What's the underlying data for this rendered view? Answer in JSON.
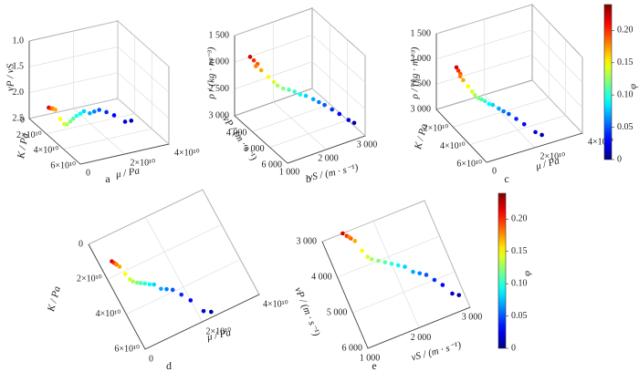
{
  "chart_data": [
    {
      "type": "scatter3d",
      "label": "a",
      "xlabel": "μ / Pa",
      "ylabel": "K / Pa",
      "zlabel": "vP / vS",
      "x": [
        3920000000.0,
        4310000000.0,
        4730000000.0,
        4710000000.0,
        5290000000.0,
        5760000000.0,
        6260000000.0,
        6790000000.0,
        7780000000.0,
        8740000000.0,
        9800000000.0,
        11000000000.0,
        12200000000.0,
        13500000000.0,
        15000000000.0,
        16600000000.0,
        18300000000.0,
        20000000000.0,
        22000000000.0,
        24000000000.0
      ],
      "y": [
        12800000000.0,
        14000000000.0,
        15200000000.0,
        15000000000.0,
        16900000000.0,
        21500000000.0,
        24900000000.0,
        26600000000.0,
        28000000000.0,
        29000000000.0,
        30100000000.0,
        31500000000.0,
        32500000000.0,
        36000000000.0,
        37400000000.0,
        39000000000.0,
        43100000000.0,
        47700000000.0,
        55400000000.0,
        57400000000.0
      ],
      "z": [
        2.14,
        2.14,
        2.13,
        2.13,
        2.13,
        2.25,
        2.3,
        2.29,
        2.22,
        2.16,
        2.1,
        2.05,
        2.0,
        2.0,
        1.96,
        1.92,
        1.92,
        1.93,
        1.96,
        1.93
      ],
      "c": [
        0.22,
        0.2,
        0.19,
        0.18,
        0.17,
        0.15,
        0.14,
        0.13,
        0.12,
        0.11,
        0.1,
        0.09,
        0.08,
        0.07,
        0.06,
        0.05,
        0.04,
        0.03,
        0.02,
        0.01
      ],
      "xlim": [
        0,
        40000000000.0
      ],
      "ylim": [
        0,
        60000000000.0
      ],
      "zlim": [
        2.5,
        1.0
      ],
      "xticks": [
        0,
        {
          "value": 20000000000.0,
          "label": "2×10¹⁰"
        },
        {
          "value": 40000000000.0,
          "label": "4×10¹⁰"
        }
      ],
      "yticks": [
        0,
        {
          "value": 20000000000.0,
          "label": "2×10¹⁰"
        },
        {
          "value": 40000000000.0,
          "label": "4×10¹⁰"
        },
        {
          "value": 60000000000.0,
          "label": "6×10¹⁰"
        }
      ],
      "zticks": [
        {
          "value": 1.0,
          "label": "1.0"
        },
        1.5,
        {
          "value": 2.0,
          "label": "2.0"
        },
        2.5
      ]
    },
    {
      "type": "scatter3d",
      "label": "b",
      "xlabel": "vS / (m · s⁻¹)",
      "ylabel": "vP / (m · s⁻¹)",
      "zlabel": "ρ / (kg · m⁻³)",
      "x": [
        1400,
        1450,
        1500,
        1480,
        1550,
        1600,
        1650,
        1700,
        1800,
        1900,
        2000,
        2100,
        2200,
        2300,
        2400,
        2500,
        2600,
        2700,
        2800,
        2900
      ],
      "y": [
        3000,
        3100,
        3200,
        3150,
        3300,
        3600,
        3800,
        3900,
        4000,
        4100,
        4200,
        4300,
        4400,
        4600,
        4700,
        4800,
        5000,
        5200,
        5500,
        5600
      ],
      "z": [
        2000,
        2050,
        2100,
        2150,
        2200,
        2250,
        2300,
        2350,
        2400,
        2420,
        2450,
        2500,
        2520,
        2550,
        2600,
        2650,
        2700,
        2750,
        2800,
        2850
      ],
      "c": [
        0.22,
        0.2,
        0.19,
        0.18,
        0.17,
        0.15,
        0.14,
        0.13,
        0.12,
        0.11,
        0.1,
        0.09,
        0.08,
        0.07,
        0.06,
        0.05,
        0.04,
        0.03,
        0.02,
        0.01
      ],
      "xlim": [
        1000,
        3000
      ],
      "ylim": [
        3000,
        6000
      ],
      "zlim": [
        3000,
        1500
      ],
      "xticks": [
        {
          "value": 1000,
          "label": "1 000"
        },
        {
          "value": 2000,
          "label": "2 000"
        },
        {
          "value": 3000,
          "label": "3 000"
        }
      ],
      "yticks": [
        {
          "value": 4000,
          "label": "4 000"
        },
        {
          "value": 5000,
          "label": "5 000"
        },
        {
          "value": 6000,
          "label": "6 000"
        }
      ],
      "zticks": [
        {
          "value": 1500,
          "label": "1 500"
        },
        {
          "value": 2000,
          "label": "2 000"
        },
        {
          "value": 2500,
          "label": "2 500"
        },
        {
          "value": 3000,
          "label": "3 000"
        }
      ]
    },
    {
      "type": "scatter3d",
      "label": "c",
      "xlabel": "μ / Pa",
      "ylabel": "K / Pa",
      "zlabel": "ρ / (kg · m⁻³)",
      "x": [
        3920000000.0,
        4310000000.0,
        4730000000.0,
        4710000000.0,
        5290000000.0,
        5760000000.0,
        6260000000.0,
        6790000000.0,
        7780000000.0,
        8740000000.0,
        9800000000.0,
        11000000000.0,
        12200000000.0,
        13500000000.0,
        15000000000.0,
        16600000000.0,
        18300000000.0,
        20000000000.0,
        22000000000.0,
        24000000000.0
      ],
      "y": [
        12800000000.0,
        14000000000.0,
        15200000000.0,
        15000000000.0,
        16900000000.0,
        21500000000.0,
        24900000000.0,
        26600000000.0,
        28000000000.0,
        29000000000.0,
        30100000000.0,
        31500000000.0,
        32500000000.0,
        36000000000.0,
        37400000000.0,
        39000000000.0,
        43100000000.0,
        47700000000.0,
        55400000000.0,
        57400000000.0
      ],
      "z": [
        2000,
        2050,
        2100,
        2150,
        2200,
        2250,
        2300,
        2350,
        2400,
        2420,
        2450,
        2500,
        2520,
        2550,
        2600,
        2650,
        2700,
        2750,
        2800,
        2850
      ],
      "c": [
        0.22,
        0.2,
        0.19,
        0.18,
        0.17,
        0.15,
        0.14,
        0.13,
        0.12,
        0.11,
        0.1,
        0.09,
        0.08,
        0.07,
        0.06,
        0.05,
        0.04,
        0.03,
        0.02,
        0.01
      ],
      "xlim": [
        0,
        40000000000.0
      ],
      "ylim": [
        0,
        60000000000.0
      ],
      "zlim": [
        3000,
        1500
      ],
      "xticks": [
        0,
        {
          "value": 20000000000.0,
          "label": "2×10¹⁰"
        },
        {
          "value": 40000000000.0,
          "label": "4×10¹⁰"
        }
      ],
      "yticks": [
        {
          "value": 20000000000.0,
          "label": "2×10¹⁰"
        },
        {
          "value": 40000000000.0,
          "label": "4×10¹⁰"
        },
        {
          "value": 60000000000.0,
          "label": "6×10¹⁰"
        }
      ],
      "zticks": [
        {
          "value": 1500,
          "label": "1 500"
        },
        {
          "value": 2000,
          "label": "2 000"
        },
        {
          "value": 2500,
          "label": "2 500"
        },
        {
          "value": 3000,
          "label": "3 000"
        }
      ]
    },
    {
      "type": "scatter",
      "label": "d",
      "xlabel": "μ / Pa",
      "ylabel": "K / Pa",
      "x": [
        3920000000.0,
        4310000000.0,
        4730000000.0,
        4710000000.0,
        5290000000.0,
        5760000000.0,
        6260000000.0,
        6790000000.0,
        7780000000.0,
        8740000000.0,
        9800000000.0,
        11000000000.0,
        12200000000.0,
        13500000000.0,
        15000000000.0,
        16600000000.0,
        18300000000.0,
        20000000000.0,
        22000000000.0,
        24000000000.0
      ],
      "y": [
        12800000000.0,
        14000000000.0,
        15200000000.0,
        15000000000.0,
        16900000000.0,
        21500000000.0,
        24900000000.0,
        26600000000.0,
        28000000000.0,
        29000000000.0,
        30100000000.0,
        31500000000.0,
        32500000000.0,
        36000000000.0,
        37400000000.0,
        39000000000.0,
        43100000000.0,
        47700000000.0,
        55400000000.0,
        57400000000.0
      ],
      "c": [
        0.22,
        0.2,
        0.19,
        0.18,
        0.17,
        0.15,
        0.14,
        0.13,
        0.12,
        0.11,
        0.1,
        0.09,
        0.08,
        0.07,
        0.06,
        0.05,
        0.04,
        0.03,
        0.02,
        0.01
      ],
      "xlim": [
        0,
        40000000000.0
      ],
      "ylim": [
        0,
        60000000000.0
      ],
      "xticks": [
        0,
        {
          "value": 20000000000.0,
          "label": "2×10¹⁰"
        },
        {
          "value": 40000000000.0,
          "label": "4×10¹⁰"
        }
      ],
      "yticks": [
        0,
        {
          "value": 20000000000.0,
          "label": "2×10¹⁰"
        },
        {
          "value": 40000000000.0,
          "label": "4×10¹⁰"
        },
        {
          "value": 60000000000.0,
          "label": "6×10¹⁰"
        }
      ]
    },
    {
      "type": "scatter",
      "label": "e",
      "xlabel": "vS / (m · s⁻¹)",
      "ylabel": "vP / (m · s⁻¹)",
      "x": [
        1400,
        1450,
        1500,
        1480,
        1550,
        1600,
        1650,
        1700,
        1800,
        1900,
        2000,
        2100,
        2200,
        2300,
        2400,
        2500,
        2600,
        2700,
        2800,
        2900
      ],
      "y": [
        3000,
        3100,
        3200,
        3150,
        3300,
        3600,
        3800,
        3900,
        4000,
        4100,
        4200,
        4300,
        4400,
        4600,
        4700,
        4800,
        5000,
        5200,
        5500,
        5600
      ],
      "c": [
        0.22,
        0.2,
        0.19,
        0.18,
        0.17,
        0.15,
        0.14,
        0.13,
        0.12,
        0.11,
        0.1,
        0.09,
        0.08,
        0.07,
        0.06,
        0.05,
        0.04,
        0.03,
        0.02,
        0.01
      ],
      "xlim": [
        1000,
        3000
      ],
      "ylim": [
        3000,
        6000
      ],
      "xticks": [
        {
          "value": 1000,
          "label": "1 000"
        },
        {
          "value": 2000,
          "label": "2 000"
        },
        {
          "value": 3000,
          "label": "3 000"
        }
      ],
      "yticks": [
        {
          "value": 3000,
          "label": "3 000"
        },
        {
          "value": 4000,
          "label": "4 000"
        },
        {
          "value": 5000,
          "label": "5 000"
        },
        {
          "value": 6000,
          "label": "6 000"
        }
      ]
    },
    {
      "type": "colorbar",
      "label": "φ",
      "colormap": "jet",
      "clim": [
        0,
        0.24
      ],
      "ticks": [
        0,
        0.05,
        {
          "value": 0.1,
          "label": "0.10"
        },
        0.15,
        {
          "value": 0.2,
          "label": "0.20"
        }
      ]
    },
    {
      "type": "colorbar",
      "label": "φ",
      "colormap": "jet",
      "clim": [
        0,
        0.24
      ],
      "ticks": [
        0,
        0.05,
        {
          "value": 0.1,
          "label": "0.10"
        },
        0.15,
        {
          "value": 0.2,
          "label": "0.20"
        }
      ]
    }
  ]
}
